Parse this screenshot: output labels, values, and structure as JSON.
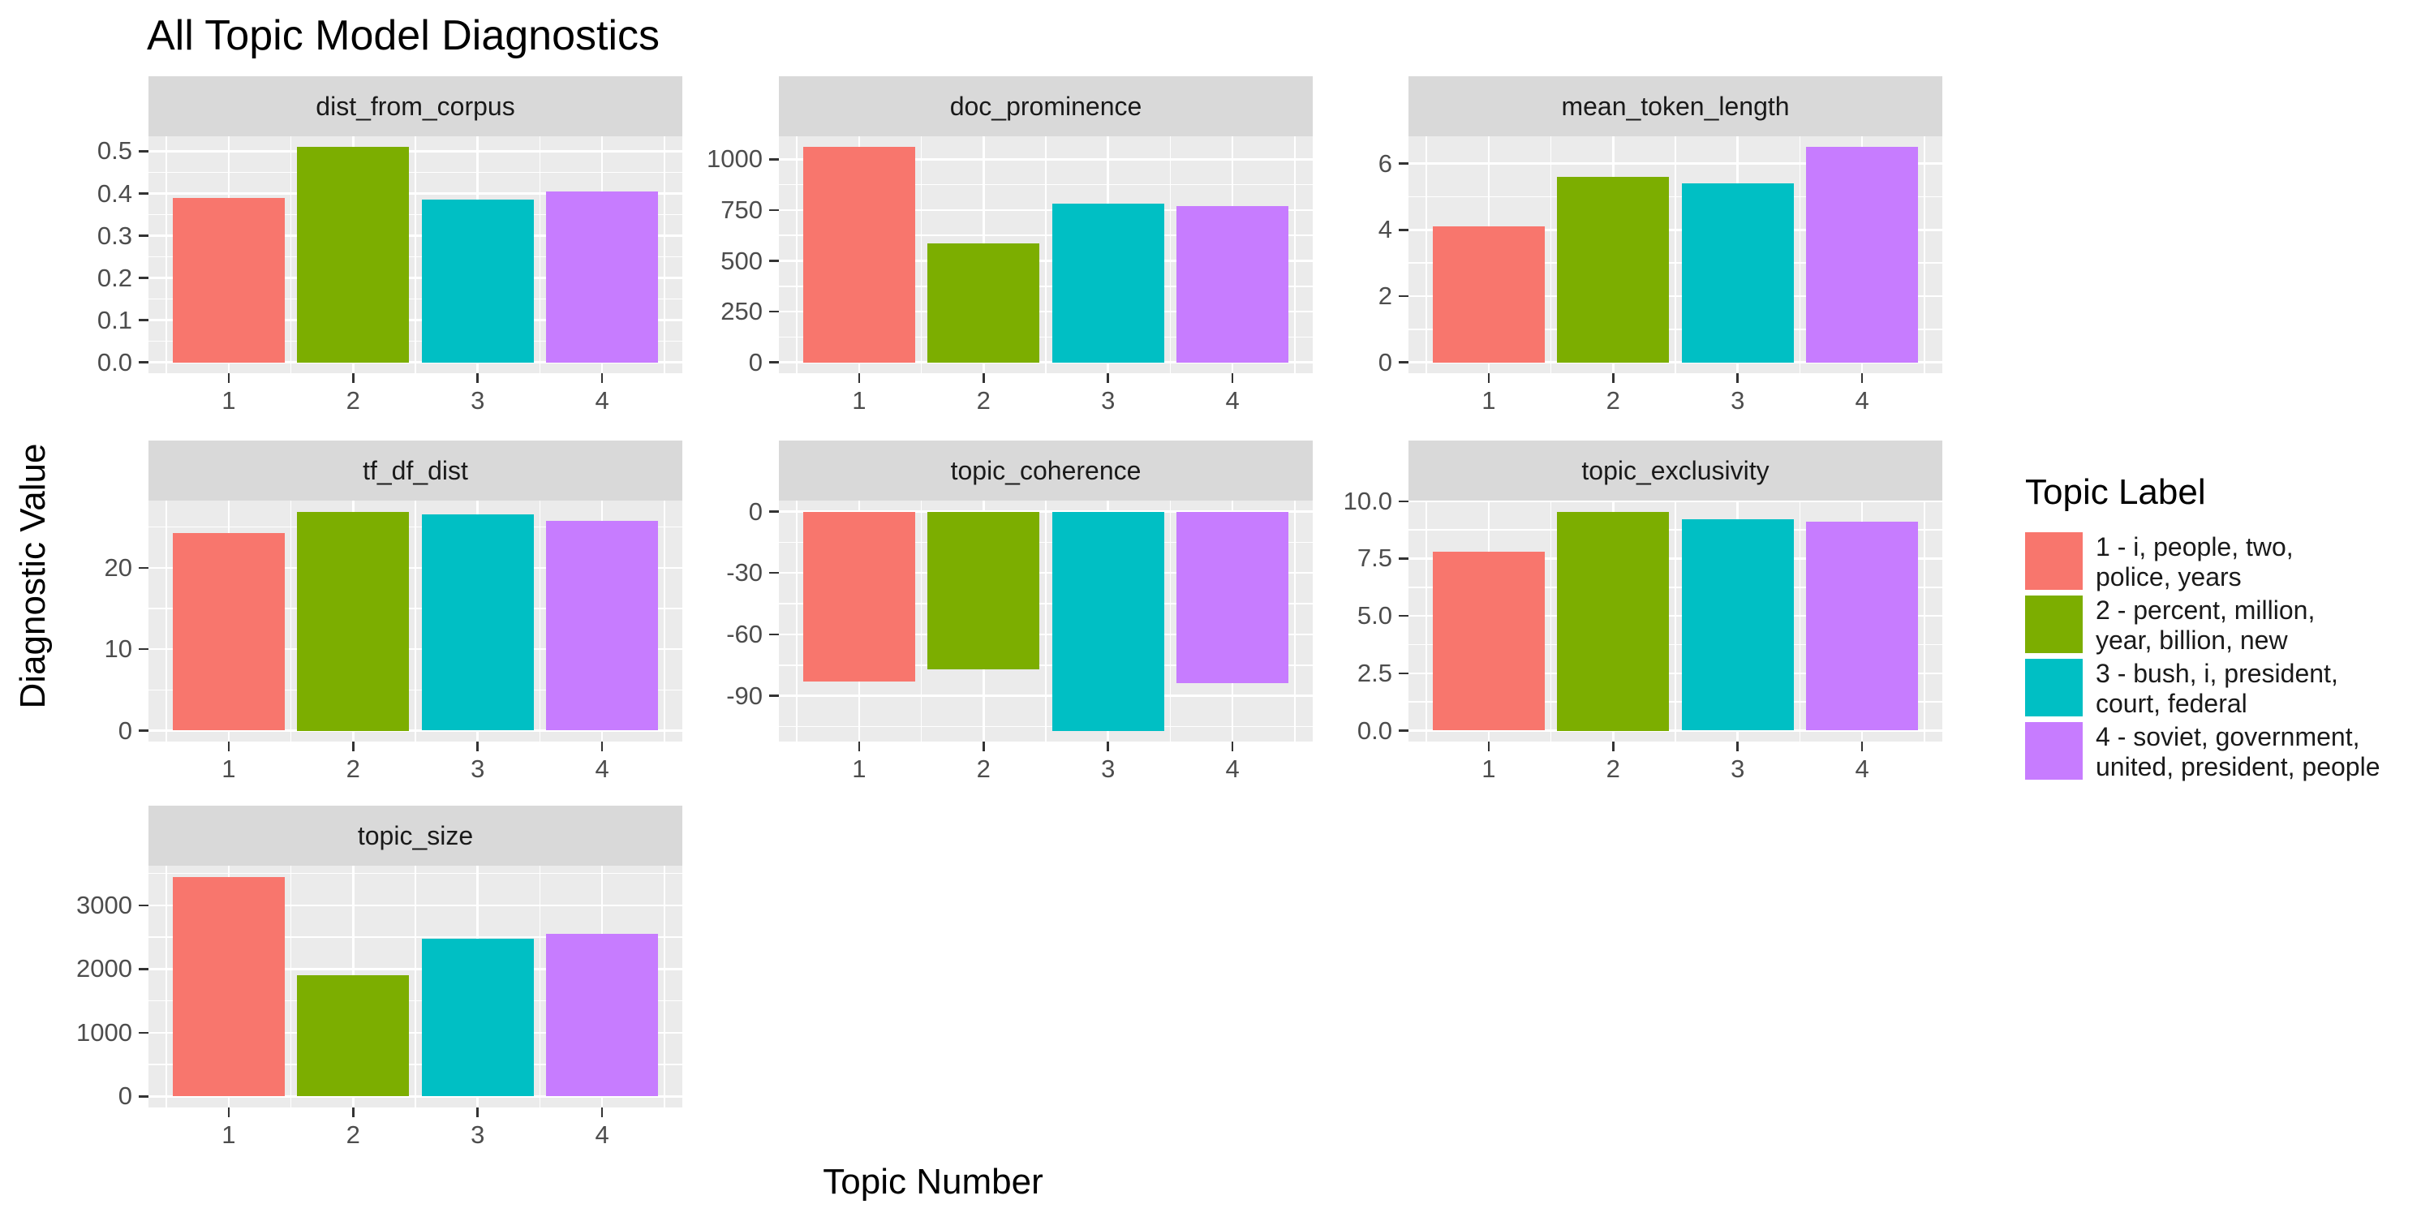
{
  "title": "All Topic Model Diagnostics",
  "axis_titles": {
    "y": "Diagnostic Value",
    "x": "Topic Number"
  },
  "legend": {
    "title": "Topic Label",
    "items": [
      {
        "topic": "1",
        "color": "#F8766D",
        "lines": [
          "1 - i, people, two,",
          "police, years"
        ]
      },
      {
        "topic": "2",
        "color": "#7CAE00",
        "lines": [
          "2 - percent, million,",
          "year, billion, new"
        ]
      },
      {
        "topic": "3",
        "color": "#00BFC4",
        "lines": [
          "3 - bush, i, president,",
          "court, federal"
        ]
      },
      {
        "topic": "4",
        "color": "#C77CFF",
        "lines": [
          "4 - soviet, government,",
          "united, president, people"
        ]
      }
    ]
  },
  "style": {
    "panel_bg": "#EBEBEB",
    "strip_bg": "#D9D9D9",
    "grid_color": "#FFFFFF",
    "tick_label_color": "#4D4D4D",
    "tick_mark_color": "#333333",
    "bar_colors": [
      "#F8766D",
      "#7CAE00",
      "#00BFC4",
      "#C77CFF"
    ]
  },
  "chart_data": {
    "type": "bar",
    "title": "All Topic Model Diagnostics",
    "xlabel": "Topic Number",
    "ylabel": "Diagnostic Value",
    "x_categories": [
      "1",
      "2",
      "3",
      "4"
    ],
    "grid": true,
    "legend_position": "right",
    "facets": [
      {
        "name": "dist_from_corpus",
        "values": [
          0.39,
          0.51,
          0.385,
          0.405
        ],
        "ylim": [
          -0.0255,
          0.5355
        ],
        "yticks": [
          {
            "v": 0.0,
            "label": "0.0"
          },
          {
            "v": 0.1,
            "label": "0.1"
          },
          {
            "v": 0.2,
            "label": "0.2"
          },
          {
            "v": 0.3,
            "label": "0.3"
          },
          {
            "v": 0.4,
            "label": "0.4"
          },
          {
            "v": 0.5,
            "label": "0.5"
          }
        ]
      },
      {
        "name": "doc_prominence",
        "values": [
          1060,
          585,
          780,
          770
        ],
        "ylim": [
          -53,
          1113
        ],
        "yticks": [
          {
            "v": 0,
            "label": "0"
          },
          {
            "v": 250,
            "label": "250"
          },
          {
            "v": 500,
            "label": "500"
          },
          {
            "v": 750,
            "label": "750"
          },
          {
            "v": 1000,
            "label": "1000"
          }
        ]
      },
      {
        "name": "mean_token_length",
        "values": [
          4.1,
          5.6,
          5.4,
          6.5
        ],
        "ylim": [
          -0.325,
          6.825
        ],
        "yticks": [
          {
            "v": 0,
            "label": "0"
          },
          {
            "v": 2,
            "label": "2"
          },
          {
            "v": 4,
            "label": "4"
          },
          {
            "v": 6,
            "label": "6"
          }
        ]
      },
      {
        "name": "tf_df_dist",
        "values": [
          24.3,
          26.9,
          26.6,
          25.8
        ],
        "ylim": [
          -1.345,
          28.245
        ],
        "yticks": [
          {
            "v": 0,
            "label": "0"
          },
          {
            "v": 10,
            "label": "10"
          },
          {
            "v": 20,
            "label": "20"
          }
        ]
      },
      {
        "name": "topic_coherence",
        "values": [
          -83,
          -77,
          -107,
          -84
        ],
        "ylim": [
          -112.35,
          5.35
        ],
        "yticks": [
          {
            "v": 0,
            "label": "0"
          },
          {
            "v": -30,
            "label": "-30"
          },
          {
            "v": -60,
            "label": "-60"
          },
          {
            "v": -90,
            "label": "-90"
          }
        ]
      },
      {
        "name": "topic_exclusivity",
        "values": [
          7.8,
          9.55,
          9.2,
          9.1
        ],
        "ylim": [
          -0.4775,
          10.0275
        ],
        "yticks": [
          {
            "v": 0.0,
            "label": "0.0"
          },
          {
            "v": 2.5,
            "label": "2.5"
          },
          {
            "v": 5.0,
            "label": "5.0"
          },
          {
            "v": 7.5,
            "label": "7.5"
          },
          {
            "v": 10.0,
            "label": "10.0"
          }
        ]
      },
      {
        "name": "topic_size",
        "values": [
          3450,
          1900,
          2480,
          2550
        ],
        "ylim": [
          -172.5,
          3622.5
        ],
        "yticks": [
          {
            "v": 0,
            "label": "0"
          },
          {
            "v": 1000,
            "label": "1000"
          },
          {
            "v": 2000,
            "label": "2000"
          },
          {
            "v": 3000,
            "label": "3000"
          }
        ]
      }
    ]
  }
}
